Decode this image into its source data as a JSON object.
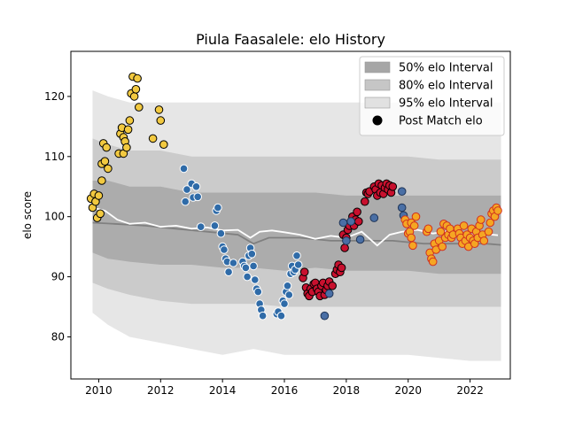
{
  "chart_data": {
    "type": "scatter",
    "title": "Piula Faasalele: elo History",
    "xlabel": "",
    "ylabel": "elo score",
    "xlim": [
      2009.1,
      2023.3
    ],
    "ylim": [
      73.0,
      127.5
    ],
    "x_ticks": [
      2010,
      2012,
      2014,
      2016,
      2018,
      2020,
      2022
    ],
    "x_tick_labels": [
      "2010",
      "2012",
      "2014",
      "2016",
      "2018",
      "2020",
      "2022"
    ],
    "y_ticks": [
      80,
      90,
      100,
      110,
      120
    ],
    "y_tick_labels": [
      "80",
      "90",
      "100",
      "110",
      "120"
    ],
    "grid": false,
    "legend": {
      "position": "top-right",
      "entries": [
        {
          "label": "50% elo Interval",
          "kind": "patch",
          "color": "#a6a6a6"
        },
        {
          "label": "80% elo Interval",
          "kind": "patch",
          "color": "#c6c6c6"
        },
        {
          "label": "95% elo Interval",
          "kind": "patch",
          "color": "#e1e1e1"
        },
        {
          "label": "Post Match elo",
          "kind": "marker",
          "color": "#000000"
        }
      ]
    },
    "bands": {
      "x": [
        2009.8,
        2010.3,
        2011.0,
        2012.0,
        2013.0,
        2014.0,
        2015.0,
        2016.0,
        2017.0,
        2018.0,
        2019.0,
        2020.0,
        2021.0,
        2022.0,
        2023.0
      ],
      "p95_low": [
        84,
        82,
        80,
        79,
        78,
        77,
        78,
        77,
        77,
        77,
        77,
        77,
        76.5,
        76,
        76
      ],
      "p95_high": [
        121,
        120,
        119,
        119,
        119,
        119,
        119,
        119,
        119,
        119,
        119,
        119,
        119,
        119,
        119
      ],
      "p80_low": [
        89,
        88,
        87,
        86,
        85.5,
        85.5,
        85.5,
        85,
        85,
        85,
        85,
        85,
        85,
        85,
        85
      ],
      "p80_high": [
        113,
        112,
        111,
        111,
        110,
        110,
        110,
        110,
        110,
        110,
        110,
        110,
        109.5,
        109.5,
        109.5
      ],
      "p50_low": [
        94,
        93,
        92.5,
        92,
        92,
        91.5,
        91.5,
        91,
        91.5,
        91,
        91,
        91,
        90.5,
        90.5,
        90.5
      ],
      "p50_high": [
        106,
        106,
        105,
        105,
        104,
        104,
        104,
        104,
        104,
        103.5,
        103.5,
        103.5,
        103.5,
        103.5,
        103.5
      ]
    },
    "median_line": {
      "color": "#808080",
      "x": [
        2009.8,
        2010.5,
        2011.5,
        2012.5,
        2013.5,
        2014.5,
        2015.0,
        2015.5,
        2016.5,
        2017.5,
        2018.5,
        2019.5,
        2020.5,
        2021.5,
        2022.5,
        2023.0
      ],
      "y": [
        99,
        98.8,
        98.5,
        98,
        97.5,
        97,
        95.5,
        96.5,
        96.5,
        96,
        96,
        96,
        95.5,
        95.5,
        95.5,
        95.3
      ]
    },
    "mean_line": {
      "color": "#ffffff",
      "x": [
        2009.8,
        2010.2,
        2010.6,
        2011.0,
        2011.5,
        2012.0,
        2012.5,
        2013.0,
        2013.5,
        2014.0,
        2014.5,
        2014.9,
        2015.2,
        2015.6,
        2016.0,
        2016.5,
        2017.0,
        2017.5,
        2018.0,
        2018.5,
        2019.0,
        2019.4,
        2019.8,
        2020.3,
        2020.8,
        2021.3,
        2021.8,
        2022.3,
        2022.9
      ],
      "y": [
        101.5,
        101,
        99.5,
        98.8,
        99,
        98.3,
        98.5,
        98,
        98.2,
        97.7,
        97.8,
        96.5,
        97.5,
        97.7,
        97.4,
        97,
        96.3,
        96.8,
        96.5,
        97.5,
        95.2,
        97,
        97.5,
        97.8,
        97.2,
        97.6,
        96.8,
        97.2,
        96.9
      ]
    },
    "series": [
      {
        "color": "#f2c940",
        "edge": "#000000",
        "points": [
          [
            2009.75,
            103.0
          ],
          [
            2009.8,
            101.5
          ],
          [
            2009.85,
            103.8
          ],
          [
            2009.9,
            102.5
          ],
          [
            2009.95,
            99.8
          ],
          [
            2010.0,
            103.5
          ],
          [
            2010.05,
            100.5
          ],
          [
            2010.1,
            106.0
          ],
          [
            2010.1,
            108.8
          ],
          [
            2010.15,
            112.2
          ],
          [
            2010.2,
            109.2
          ],
          [
            2010.25,
            111.5
          ],
          [
            2010.3,
            108.0
          ],
          [
            2010.65,
            110.5
          ],
          [
            2010.7,
            113.8
          ],
          [
            2010.75,
            114.8
          ],
          [
            2010.8,
            110.5
          ],
          [
            2010.8,
            113.2
          ],
          [
            2010.85,
            112.5
          ],
          [
            2010.9,
            111.5
          ],
          [
            2010.95,
            114.5
          ],
          [
            2011.0,
            116.0
          ],
          [
            2011.05,
            120.5
          ],
          [
            2011.1,
            123.3
          ],
          [
            2011.15,
            120.0
          ],
          [
            2011.2,
            121.2
          ],
          [
            2011.25,
            123.0
          ],
          [
            2011.3,
            118.2
          ],
          [
            2011.75,
            113.0
          ],
          [
            2011.95,
            117.8
          ],
          [
            2012.0,
            116.0
          ],
          [
            2012.1,
            112.0
          ]
        ]
      },
      {
        "color": "#2f6ba8",
        "edge": "#ffffff",
        "points": [
          [
            2012.75,
            108.0
          ],
          [
            2012.8,
            102.5
          ],
          [
            2012.85,
            104.5
          ],
          [
            2013.0,
            105.5
          ],
          [
            2013.05,
            103.2
          ],
          [
            2013.15,
            105.0
          ],
          [
            2013.2,
            103.3
          ],
          [
            2013.3,
            98.3
          ],
          [
            2013.75,
            98.5
          ],
          [
            2013.8,
            101.0
          ],
          [
            2013.85,
            101.5
          ],
          [
            2013.95,
            97.2
          ],
          [
            2014.0,
            95.0
          ],
          [
            2014.05,
            94.5
          ],
          [
            2014.1,
            93.0
          ],
          [
            2014.15,
            92.5
          ],
          [
            2014.2,
            90.8
          ],
          [
            2014.35,
            92.3
          ],
          [
            2014.65,
            92.5
          ],
          [
            2014.7,
            91.8
          ],
          [
            2014.75,
            91.5
          ],
          [
            2014.8,
            90.0
          ],
          [
            2014.85,
            93.5
          ],
          [
            2014.9,
            94.8
          ],
          [
            2014.95,
            93.8
          ],
          [
            2015.0,
            91.8
          ],
          [
            2015.05,
            89.5
          ],
          [
            2015.1,
            88.0
          ],
          [
            2015.15,
            87.5
          ],
          [
            2015.2,
            85.5
          ],
          [
            2015.25,
            84.5
          ],
          [
            2015.3,
            83.5
          ],
          [
            2015.75,
            83.8
          ],
          [
            2015.8,
            84.2
          ],
          [
            2015.9,
            83.5
          ],
          [
            2015.95,
            86.0
          ],
          [
            2016.0,
            85.5
          ],
          [
            2016.05,
            87.5
          ],
          [
            2016.1,
            88.5
          ],
          [
            2016.15,
            87.0
          ],
          [
            2016.2,
            90.5
          ],
          [
            2016.25,
            91.8
          ],
          [
            2016.3,
            90.8
          ],
          [
            2016.35,
            91.2
          ],
          [
            2016.4,
            93.5
          ],
          [
            2016.45,
            92.0
          ]
        ]
      },
      {
        "color": "#c8102e",
        "edge": "#000000",
        "points": [
          [
            2016.6,
            89.8
          ],
          [
            2016.65,
            90.8
          ],
          [
            2016.7,
            88.2
          ],
          [
            2016.75,
            87.2
          ],
          [
            2016.8,
            86.8
          ],
          [
            2016.85,
            88.0
          ],
          [
            2016.9,
            87.5
          ],
          [
            2016.95,
            88.8
          ],
          [
            2017.0,
            89.0
          ],
          [
            2017.05,
            88.0
          ],
          [
            2017.1,
            87.5
          ],
          [
            2017.15,
            86.8
          ],
          [
            2017.2,
            88.5
          ],
          [
            2017.25,
            89.0
          ],
          [
            2017.3,
            87.0
          ],
          [
            2017.35,
            87.8
          ],
          [
            2017.4,
            88.5
          ],
          [
            2017.45,
            89.2
          ],
          [
            2017.55,
            88.5
          ],
          [
            2017.65,
            90.5
          ],
          [
            2017.7,
            91.2
          ],
          [
            2017.75,
            92.0
          ],
          [
            2017.8,
            90.8
          ],
          [
            2017.85,
            91.5
          ],
          [
            2017.9,
            97.0
          ],
          [
            2017.95,
            94.8
          ],
          [
            2018.0,
            96.5
          ],
          [
            2018.05,
            97.8
          ],
          [
            2018.1,
            98.5
          ],
          [
            2018.15,
            99.2
          ],
          [
            2018.2,
            100.0
          ],
          [
            2018.25,
            98.5
          ],
          [
            2018.3,
            99.5
          ],
          [
            2018.35,
            100.8
          ],
          [
            2018.4,
            99.2
          ],
          [
            2018.6,
            102.5
          ],
          [
            2018.65,
            104.0
          ],
          [
            2018.7,
            103.8
          ],
          [
            2018.75,
            104.2
          ],
          [
            2018.9,
            105.0
          ],
          [
            2018.95,
            104.5
          ],
          [
            2019.0,
            103.5
          ],
          [
            2019.05,
            105.5
          ],
          [
            2019.1,
            104.0
          ],
          [
            2019.15,
            105.2
          ],
          [
            2019.2,
            103.8
          ],
          [
            2019.25,
            104.8
          ],
          [
            2019.3,
            105.5
          ],
          [
            2019.35,
            104.5
          ],
          [
            2019.4,
            105.2
          ],
          [
            2019.45,
            104.0
          ],
          [
            2019.5,
            105.0
          ]
        ]
      },
      {
        "color": "#4a6fa5",
        "edge": "#1f3558",
        "points": [
          [
            2017.3,
            83.5
          ],
          [
            2017.45,
            87.2
          ],
          [
            2017.9,
            99.0
          ],
          [
            2018.0,
            96.0
          ],
          [
            2018.15,
            99.2
          ],
          [
            2018.45,
            96.2
          ],
          [
            2018.9,
            99.8
          ],
          [
            2019.8,
            104.2
          ],
          [
            2019.8,
            101.5
          ],
          [
            2019.85,
            100.2
          ]
        ]
      },
      {
        "color": "#f5a623",
        "edge": "#d0301f",
        "points": [
          [
            2019.9,
            99.5
          ],
          [
            2019.95,
            98.8
          ],
          [
            2020.0,
            97.2
          ],
          [
            2020.05,
            97.5
          ],
          [
            2020.1,
            99.0
          ],
          [
            2020.1,
            96.5
          ],
          [
            2020.15,
            95.2
          ],
          [
            2020.2,
            98.5
          ],
          [
            2020.25,
            100.0
          ],
          [
            2020.6,
            97.5
          ],
          [
            2020.65,
            98.0
          ],
          [
            2020.7,
            94.0
          ],
          [
            2020.75,
            93.0
          ],
          [
            2020.8,
            92.5
          ],
          [
            2020.85,
            95.5
          ],
          [
            2020.9,
            94.5
          ],
          [
            2021.0,
            96.0
          ],
          [
            2021.05,
            97.5
          ],
          [
            2021.1,
            95.0
          ],
          [
            2021.15,
            98.8
          ],
          [
            2021.2,
            96.5
          ],
          [
            2021.25,
            98.5
          ],
          [
            2021.3,
            97.0
          ],
          [
            2021.35,
            98.0
          ],
          [
            2021.4,
            96.5
          ],
          [
            2021.45,
            97.0
          ],
          [
            2021.6,
            98.0
          ],
          [
            2021.65,
            97.2
          ],
          [
            2021.7,
            96.5
          ],
          [
            2021.75,
            95.5
          ],
          [
            2021.8,
            98.5
          ],
          [
            2021.85,
            96.0
          ],
          [
            2021.9,
            97.0
          ],
          [
            2021.95,
            95.0
          ],
          [
            2022.0,
            96.5
          ],
          [
            2022.05,
            98.0
          ],
          [
            2022.1,
            96.0
          ],
          [
            2022.15,
            95.5
          ],
          [
            2022.2,
            97.5
          ],
          [
            2022.25,
            96.5
          ],
          [
            2022.3,
            98.5
          ],
          [
            2022.35,
            99.5
          ],
          [
            2022.4,
            97.0
          ],
          [
            2022.45,
            96.0
          ],
          [
            2022.6,
            97.5
          ],
          [
            2022.65,
            99.0
          ],
          [
            2022.7,
            100.5
          ],
          [
            2022.75,
            101.0
          ],
          [
            2022.8,
            100.0
          ],
          [
            2022.85,
            101.5
          ],
          [
            2022.9,
            101.0
          ]
        ]
      }
    ]
  }
}
